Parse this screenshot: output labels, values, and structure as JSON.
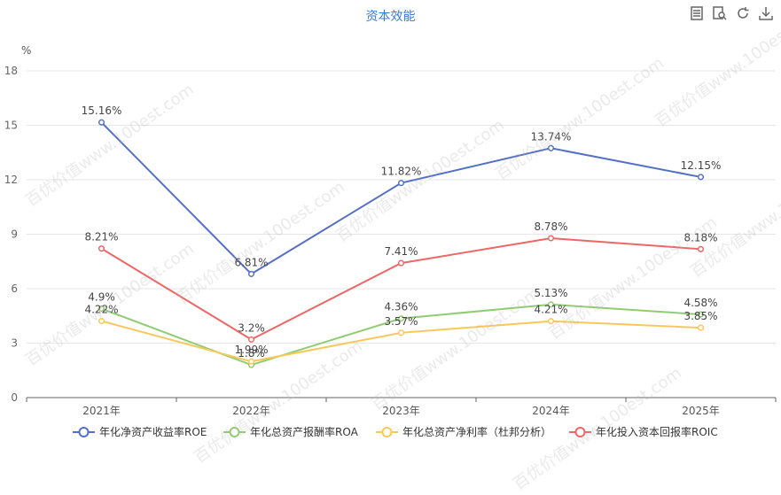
{
  "title": "资本效能",
  "unit": "%",
  "watermark": "百优价值www.100est.com",
  "toolbar": {
    "icons": [
      "data-view-icon",
      "zoom-icon",
      "refresh-icon",
      "download-icon"
    ]
  },
  "chart_data": {
    "type": "line",
    "title": "资本效能",
    "ylabel": "%",
    "xlabel": "",
    "categories": [
      "2021年",
      "2022年",
      "2023年",
      "2024年",
      "2025年"
    ],
    "ylim": [
      0,
      18
    ],
    "yticks": [
      0,
      3,
      6,
      9,
      12,
      15,
      18
    ],
    "grid": true,
    "legend": "bottom",
    "series": [
      {
        "name": "年化净资产收益率ROE",
        "color": "#5470c6",
        "values": [
          15.16,
          6.81,
          11.82,
          13.74,
          12.15
        ],
        "labels": [
          "15.16%",
          "6.81%",
          "11.82%",
          "13.74%",
          "12.15%"
        ]
      },
      {
        "name": "年化总资产报酬率ROA",
        "color": "#91cc75",
        "values": [
          4.9,
          1.8,
          4.36,
          5.13,
          4.58
        ],
        "labels": [
          "4.9%",
          "1.8%",
          "4.36%",
          "5.13%",
          "4.58%"
        ]
      },
      {
        "name": "年化总资产净利率（杜邦分析）",
        "color": "#fac858",
        "values": [
          4.22,
          1.99,
          3.57,
          4.21,
          3.85
        ],
        "labels": [
          "4.22%",
          "1.99%",
          "3.57%",
          "4.21%",
          "3.85%"
        ]
      },
      {
        "name": "年化投入资本回报率ROIC",
        "color": "#ee6666",
        "values": [
          8.21,
          3.2,
          7.41,
          8.78,
          8.18
        ],
        "labels": [
          "8.21%",
          "3.2%",
          "7.41%",
          "8.78%",
          "8.18%"
        ]
      }
    ]
  }
}
